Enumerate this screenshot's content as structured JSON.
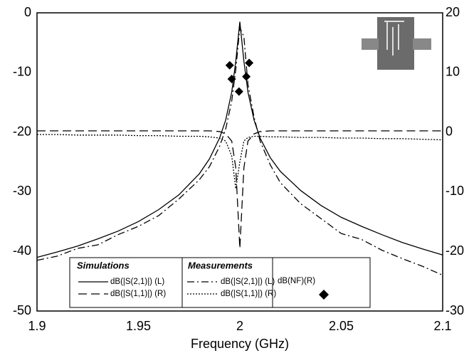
{
  "chart_data": {
    "type": "line",
    "x_label": "Frequency (GHz)",
    "xlim": [
      1.9,
      2.1
    ],
    "xticks": [
      1.9,
      1.95,
      2,
      2.05,
      2.1
    ],
    "ylim": [
      -50,
      0
    ],
    "yticks": [
      -50,
      -40,
      -30,
      -20,
      -10,
      0
    ],
    "y2lim": [
      -30,
      20
    ],
    "y2ticks": [
      -30,
      -20,
      -10,
      0,
      10,
      20
    ],
    "grid": false,
    "x": [
      1.9,
      1.91,
      1.92,
      1.93,
      1.94,
      1.95,
      1.96,
      1.97,
      1.98,
      1.985,
      1.99,
      1.993,
      1.996,
      1.998,
      2.0,
      2.002,
      2.004,
      2.007,
      2.01,
      2.015,
      2.02,
      2.03,
      2.04,
      2.05,
      2.06,
      2.07,
      2.08,
      2.09,
      2.1
    ],
    "series": [
      {
        "name": "dB(|S(2,1)|) (L)",
        "group": "Simulations",
        "color": "#000000",
        "dash": "solid",
        "values": [
          -41.0,
          -40.1,
          -39.1,
          -37.9,
          -36.6,
          -35.0,
          -33.0,
          -30.5,
          -27.0,
          -24.5,
          -21.0,
          -18.0,
          -13.3,
          -8.1,
          -1.5,
          -8.1,
          -13.3,
          -18.0,
          -21.0,
          -24.3,
          -26.6,
          -29.8,
          -32.3,
          -34.3,
          -35.8,
          -37.2,
          -38.5,
          -39.6,
          -40.6
        ]
      },
      {
        "name": "dB(|S(1,1)|) (R)",
        "group": "Simulations",
        "color": "#000000",
        "dash": "dashed",
        "axis": "y2",
        "values": [
          0.2,
          0.2,
          0.2,
          0.2,
          0.2,
          0.2,
          0.2,
          0.2,
          0.2,
          0.2,
          0.1,
          -0.3,
          -1.5,
          -6,
          -19.5,
          -6,
          -1.5,
          -0.3,
          0.1,
          0.2,
          0.2,
          0.2,
          0.2,
          0.2,
          0.2,
          0.2,
          0.2,
          0.2,
          0.2
        ]
      },
      {
        "name": "dB(|S(2,1)|) (L)",
        "group": "Measurements",
        "color": "#000000",
        "dash": "dashdot",
        "values": [
          -41.5,
          -40.8,
          -39.5,
          -38.9,
          -37.2,
          -35.8,
          -34.0,
          -31.2,
          -28.0,
          -25.8,
          -22.4,
          -19.5,
          -14.8,
          -9.5,
          -2.5,
          -4.0,
          -12.0,
          -17.5,
          -21.5,
          -25.5,
          -28.5,
          -32.0,
          -34.5,
          -37.0,
          -38.0,
          -39.8,
          -41.2,
          -42.5,
          -44.0
        ]
      },
      {
        "name": "dB(|S(1,1)|) (R)",
        "group": "Measurements",
        "color": "#000000",
        "dash": "dotted",
        "axis": "y2",
        "values": [
          -0.4,
          -0.4,
          -0.5,
          -0.5,
          -0.5,
          -0.6,
          -0.6,
          -0.7,
          -0.7,
          -0.8,
          -1.0,
          -1.5,
          -4.0,
          -9.5,
          -5.0,
          -1.5,
          -0.9,
          -0.7,
          -0.7,
          -0.8,
          -0.8,
          -0.9,
          -0.9,
          -1.0,
          -1.0,
          -1.1,
          -1.1,
          -1.2,
          -1.3
        ]
      },
      {
        "name": "dB(NF)(R)",
        "color": "#000000",
        "marker": "diamond",
        "axis": "y2",
        "x": [
          1.995,
          1.996,
          1.9996,
          2.0032,
          2.0046
        ],
        "values": [
          11.2,
          8.9,
          6.8,
          9.3,
          11.6
        ]
      }
    ]
  }
}
